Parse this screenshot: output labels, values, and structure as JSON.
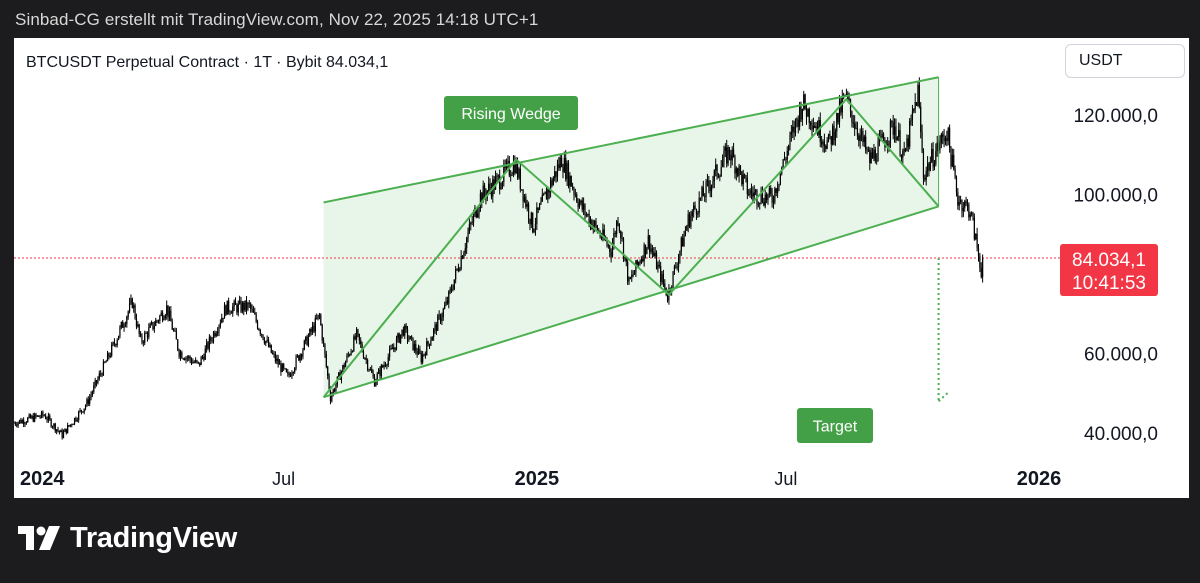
{
  "header": {
    "attribution": "Sinbad-CG erstellt mit TradingView.com, Nov 22, 2025 14:18 UTC+1"
  },
  "chart_header": {
    "title": "BTCUSDT Perpetual Contract · 1T · Bybit  84.034,1",
    "currency": "USDT"
  },
  "colors": {
    "pattern": "#4caf50",
    "pattern_fill": "#e8f5e9",
    "label_bg": "#43a047",
    "price_tag": "#f23645",
    "candles": "#000000",
    "current_line": "#f23645"
  },
  "annotations": {
    "pattern_label": "Rising Wedge",
    "target_label": "Target"
  },
  "price_tag": {
    "price": "84.034,1",
    "countdown": "10:41:53"
  },
  "brand": {
    "name": "TradingView",
    "icon": "tradingview-logo-icon"
  },
  "chart_data": {
    "type": "candlestick",
    "symbol": "BTCUSDT Perpetual Contract",
    "interval": "1T",
    "exchange": "Bybit",
    "last_price": 84034.1,
    "y_unit": "USDT",
    "y_axis": {
      "ticks": [
        40000,
        60000,
        100000,
        120000
      ],
      "tick_labels": [
        "40.000,0",
        "60.000,0",
        "100.000,0",
        "120.000,0"
      ],
      "range": [
        35000,
        135000
      ],
      "scale": "linear"
    },
    "x_axis": {
      "ticks": [
        "2024-01-01",
        "2024-07-01",
        "2025-01-01",
        "2025-07-01",
        "2026-01-01"
      ],
      "tick_labels": [
        "2024",
        "Jul",
        "2025",
        "Jul",
        "2026"
      ],
      "range": [
        "2023-12-18",
        "2026-04-20"
      ]
    },
    "price_path": [
      [
        "2023-12-18",
        42500
      ],
      [
        "2024-01-10",
        44500
      ],
      [
        "2024-01-23",
        39500
      ],
      [
        "2024-02-10",
        47500
      ],
      [
        "2024-02-28",
        61000
      ],
      [
        "2024-03-14",
        73000
      ],
      [
        "2024-03-20",
        63000
      ],
      [
        "2024-04-08",
        71500
      ],
      [
        "2024-04-17",
        60500
      ],
      [
        "2024-05-01",
        57000
      ],
      [
        "2024-05-21",
        71500
      ],
      [
        "2024-06-07",
        71800
      ],
      [
        "2024-06-24",
        59500
      ],
      [
        "2024-07-05",
        54000
      ],
      [
        "2024-07-28",
        69500
      ],
      [
        "2024-08-05",
        49000
      ],
      [
        "2024-08-24",
        64500
      ],
      [
        "2024-09-06",
        53000
      ],
      [
        "2024-09-27",
        66000
      ],
      [
        "2024-10-10",
        58800
      ],
      [
        "2024-10-29",
        73000
      ],
      [
        "2024-11-12",
        89000
      ],
      [
        "2024-11-22",
        99500
      ],
      [
        "2024-12-05",
        103500
      ],
      [
        "2024-12-17",
        108000
      ],
      [
        "2024-12-30",
        92000
      ],
      [
        "2025-01-20",
        109000
      ],
      [
        "2025-02-03",
        97000
      ],
      [
        "2025-02-25",
        86000
      ],
      [
        "2025-03-02",
        94500
      ],
      [
        "2025-03-10",
        77500
      ],
      [
        "2025-03-24",
        88500
      ],
      [
        "2025-04-07",
        74500
      ],
      [
        "2025-04-22",
        93500
      ],
      [
        "2025-05-10",
        104000
      ],
      [
        "2025-05-22",
        111000
      ],
      [
        "2025-06-05",
        100500
      ],
      [
        "2025-06-22",
        99000
      ],
      [
        "2025-07-14",
        123000
      ],
      [
        "2025-08-02",
        112500
      ],
      [
        "2025-08-14",
        124500
      ],
      [
        "2025-09-01",
        108500
      ],
      [
        "2025-09-19",
        117500
      ],
      [
        "2025-09-26",
        109000
      ],
      [
        "2025-10-06",
        126000
      ],
      [
        "2025-10-10",
        105000
      ],
      [
        "2025-10-27",
        116000
      ],
      [
        "2025-11-04",
        99000
      ],
      [
        "2025-11-13",
        96000
      ],
      [
        "2025-11-21",
        81000
      ],
      [
        "2025-11-22",
        84034.1
      ]
    ],
    "drawings": {
      "rising_wedge_upper": [
        [
          "2024-07-30",
          98000
        ],
        [
          "2025-10-20",
          129500
        ]
      ],
      "rising_wedge_lower": [
        [
          "2024-07-30",
          49000
        ],
        [
          "2025-10-20",
          97000
        ]
      ],
      "zigzag": [
        [
          "2024-07-30",
          49000
        ],
        [
          "2024-12-17",
          108800
        ],
        [
          "2025-04-07",
          74800
        ],
        [
          "2025-08-14",
          124000
        ],
        [
          "2025-10-20",
          97000
        ]
      ],
      "target_projection": [
        [
          "2025-10-20",
          84034.1
        ],
        [
          "2025-10-20",
          48000
        ]
      ],
      "current_price_line": 84034.1
    }
  }
}
